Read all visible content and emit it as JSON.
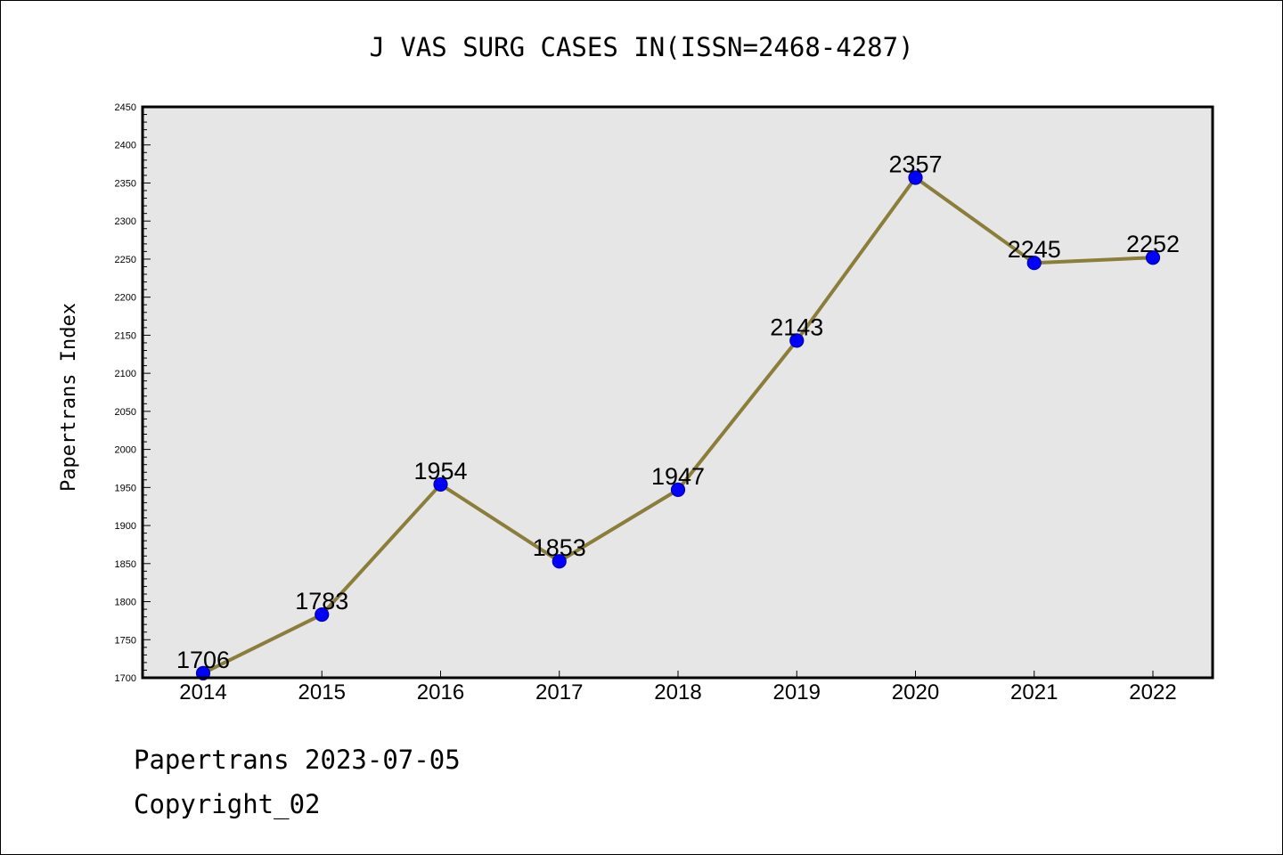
{
  "title": "J VAS SURG CASES IN(ISSN=2468-4287)",
  "footer": {
    "date_line": "Papertrans 2023-07-05",
    "copyright": "Copyright_02"
  },
  "colors": {
    "plot_background": "#e6e6e6",
    "line": "#8b7d3a",
    "marker_fill": "#0000ff",
    "marker_edge": "#0000aa"
  },
  "chart_data": {
    "type": "line",
    "title": "J VAS SURG CASES IN(ISSN=2468-4287)",
    "xlabel": "",
    "ylabel": "Papertrans Index",
    "x": [
      "2014",
      "2015",
      "2016",
      "2017",
      "2018",
      "2019",
      "2020",
      "2021",
      "2022"
    ],
    "series": [
      {
        "values": [
          1706,
          1783,
          1954,
          1853,
          1947,
          2143,
          2357,
          2245,
          2252
        ]
      }
    ],
    "ylim": [
      1700,
      2450
    ],
    "yticks": [
      1700,
      1750,
      1800,
      1850,
      1900,
      1950,
      2000,
      2050,
      2100,
      2150,
      2200,
      2250,
      2300,
      2350,
      2400,
      2450
    ],
    "grid": false,
    "data_labels": true
  }
}
